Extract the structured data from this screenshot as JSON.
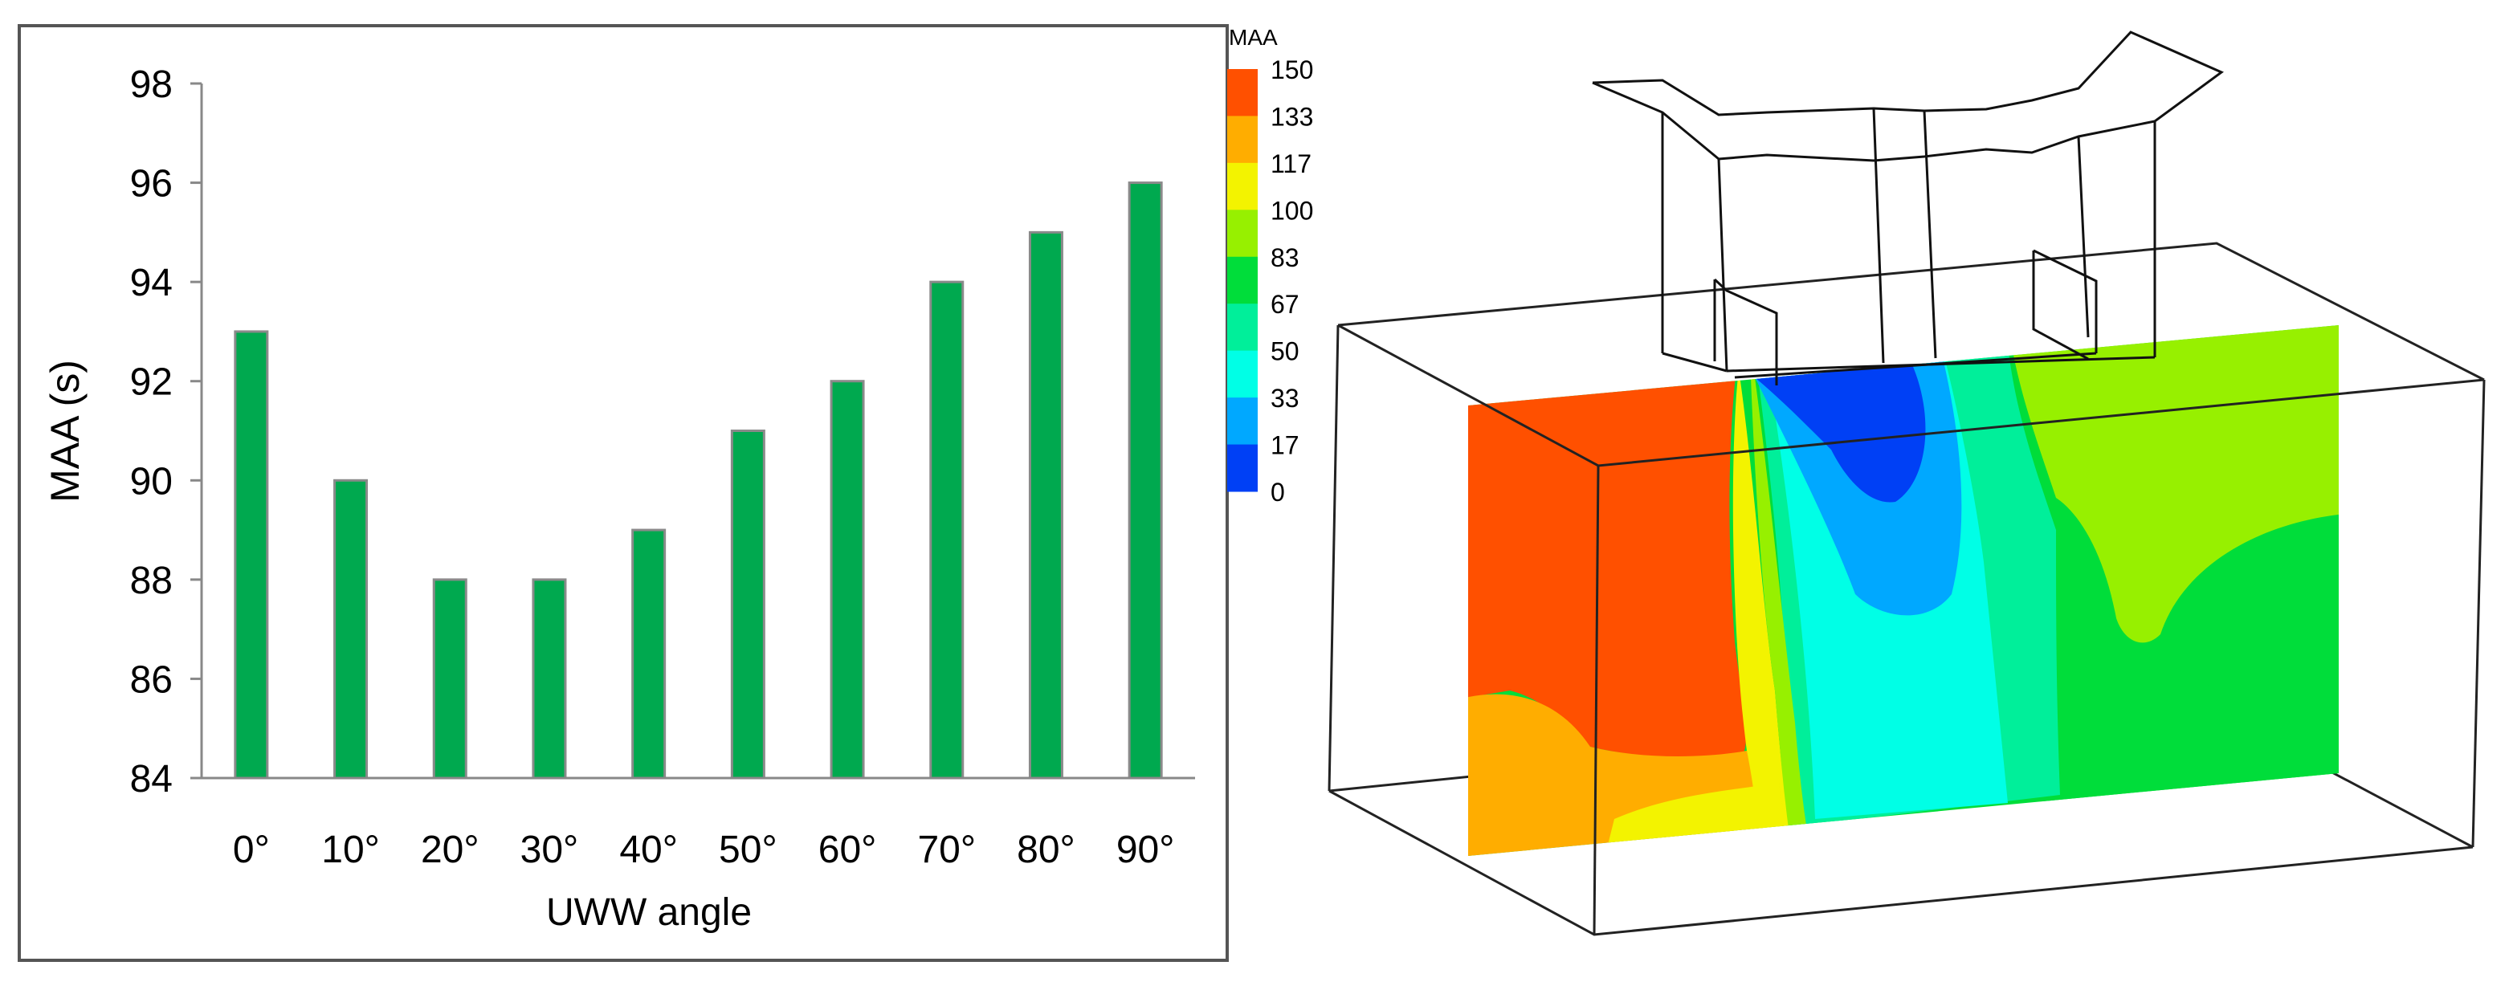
{
  "chart_data": [
    {
      "type": "bar",
      "categories": [
        "0°",
        "10°",
        "20°",
        "30°",
        "40°",
        "50°",
        "60°",
        "70°",
        "80°",
        "90°"
      ],
      "values": [
        93,
        90,
        88,
        88,
        89,
        91,
        92,
        94,
        95,
        96
      ],
      "title": "",
      "xlabel": "UWW angle",
      "ylabel": "MAA (s)",
      "ylim": [
        84,
        98
      ],
      "yticks": [
        "84",
        "86",
        "88",
        "90",
        "92",
        "94",
        "96",
        "98"
      ],
      "grid": false,
      "legend": "none",
      "bar_color": "#00a94f",
      "bar_edge_color": "#8a8a8a"
    },
    {
      "type": "heatmap",
      "title": "",
      "colorbar": {
        "label": "MAA",
        "ticks": [
          "150",
          "133",
          "117",
          "100",
          "83",
          "67",
          "50",
          "33",
          "17",
          "0"
        ],
        "colors": [
          "#ff5000",
          "#ffad00",
          "#f3f300",
          "#97f000",
          "#00dd3a",
          "#00ef9a",
          "#00ffe6",
          "#00a8ff",
          "#0040f5"
        ]
      }
    }
  ]
}
